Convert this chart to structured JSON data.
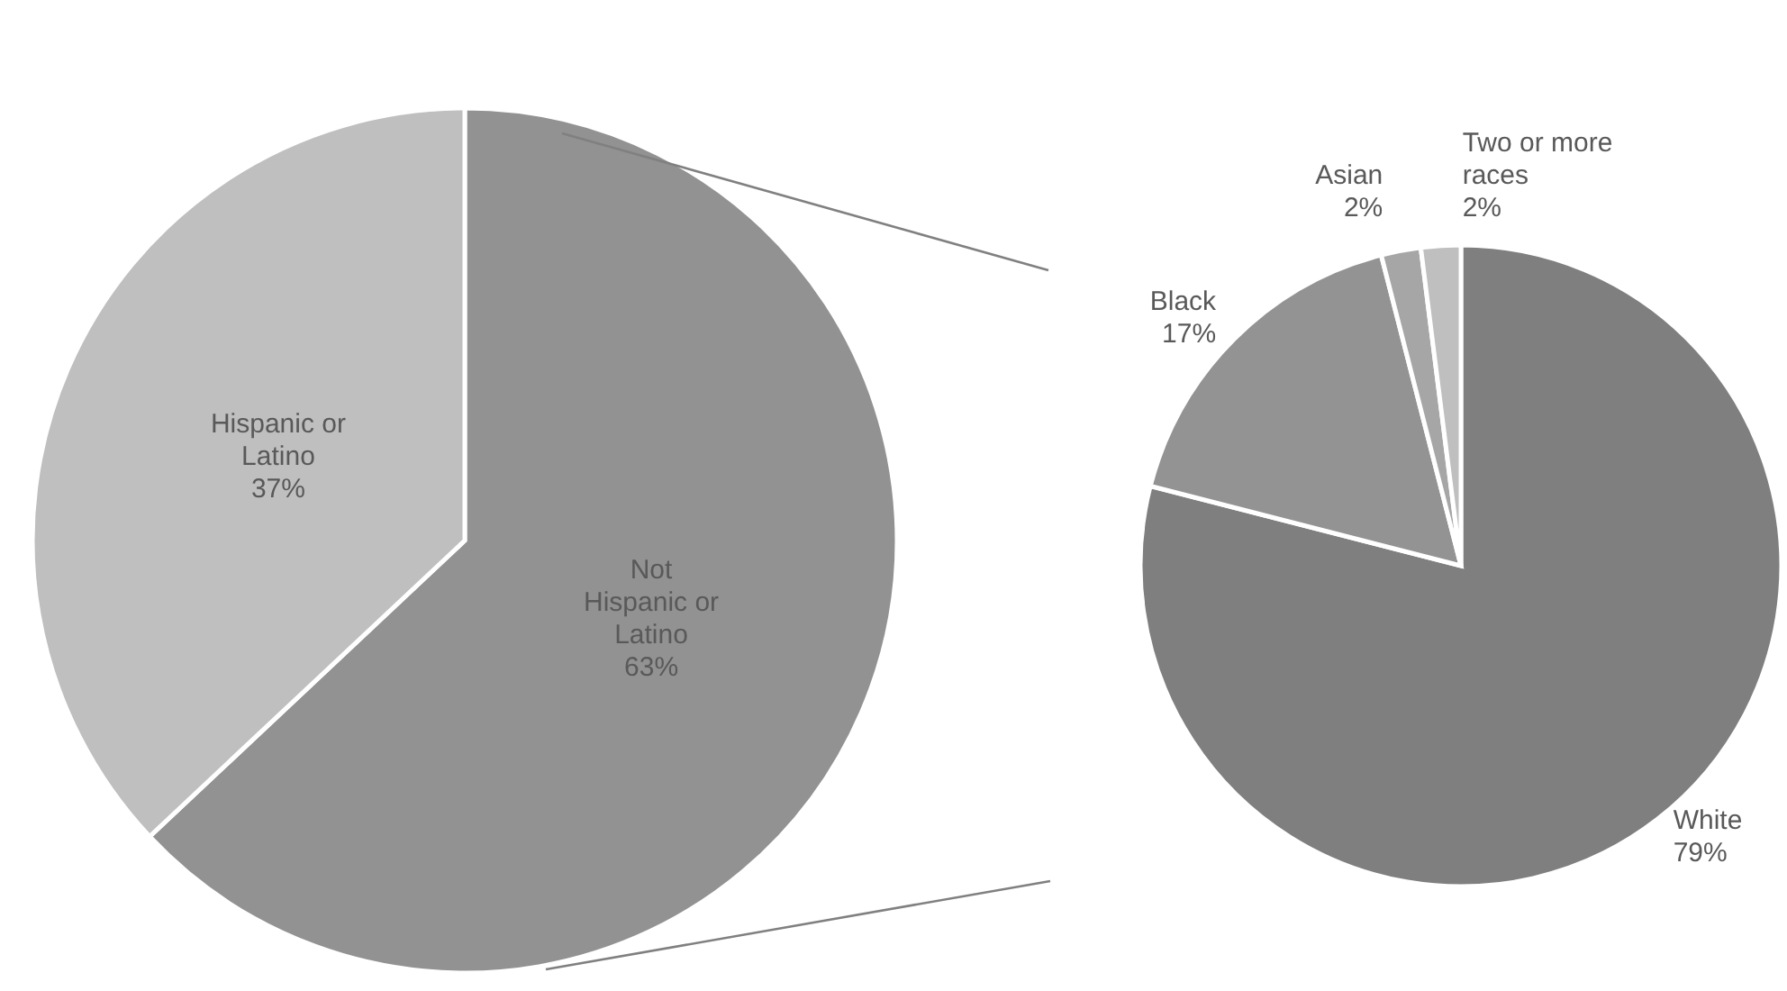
{
  "chart_data": [
    {
      "type": "pie",
      "categories": [
        "Not Hispanic or Latino",
        "Hispanic or Latino"
      ],
      "values": [
        63,
        37
      ],
      "colors": [
        "#929292",
        "#bfbfbf"
      ],
      "value_labels": [
        "63%",
        "37%"
      ]
    },
    {
      "type": "pie",
      "categories": [
        "White",
        "Black",
        "Asian",
        "Two or more races"
      ],
      "values": [
        79,
        17,
        2,
        2
      ],
      "colors": [
        "#7f7f7f",
        "#939393",
        "#a6a6a6",
        "#bfbfbf"
      ],
      "value_labels": [
        "79%",
        "17%",
        "2%",
        "2%"
      ]
    }
  ]
}
